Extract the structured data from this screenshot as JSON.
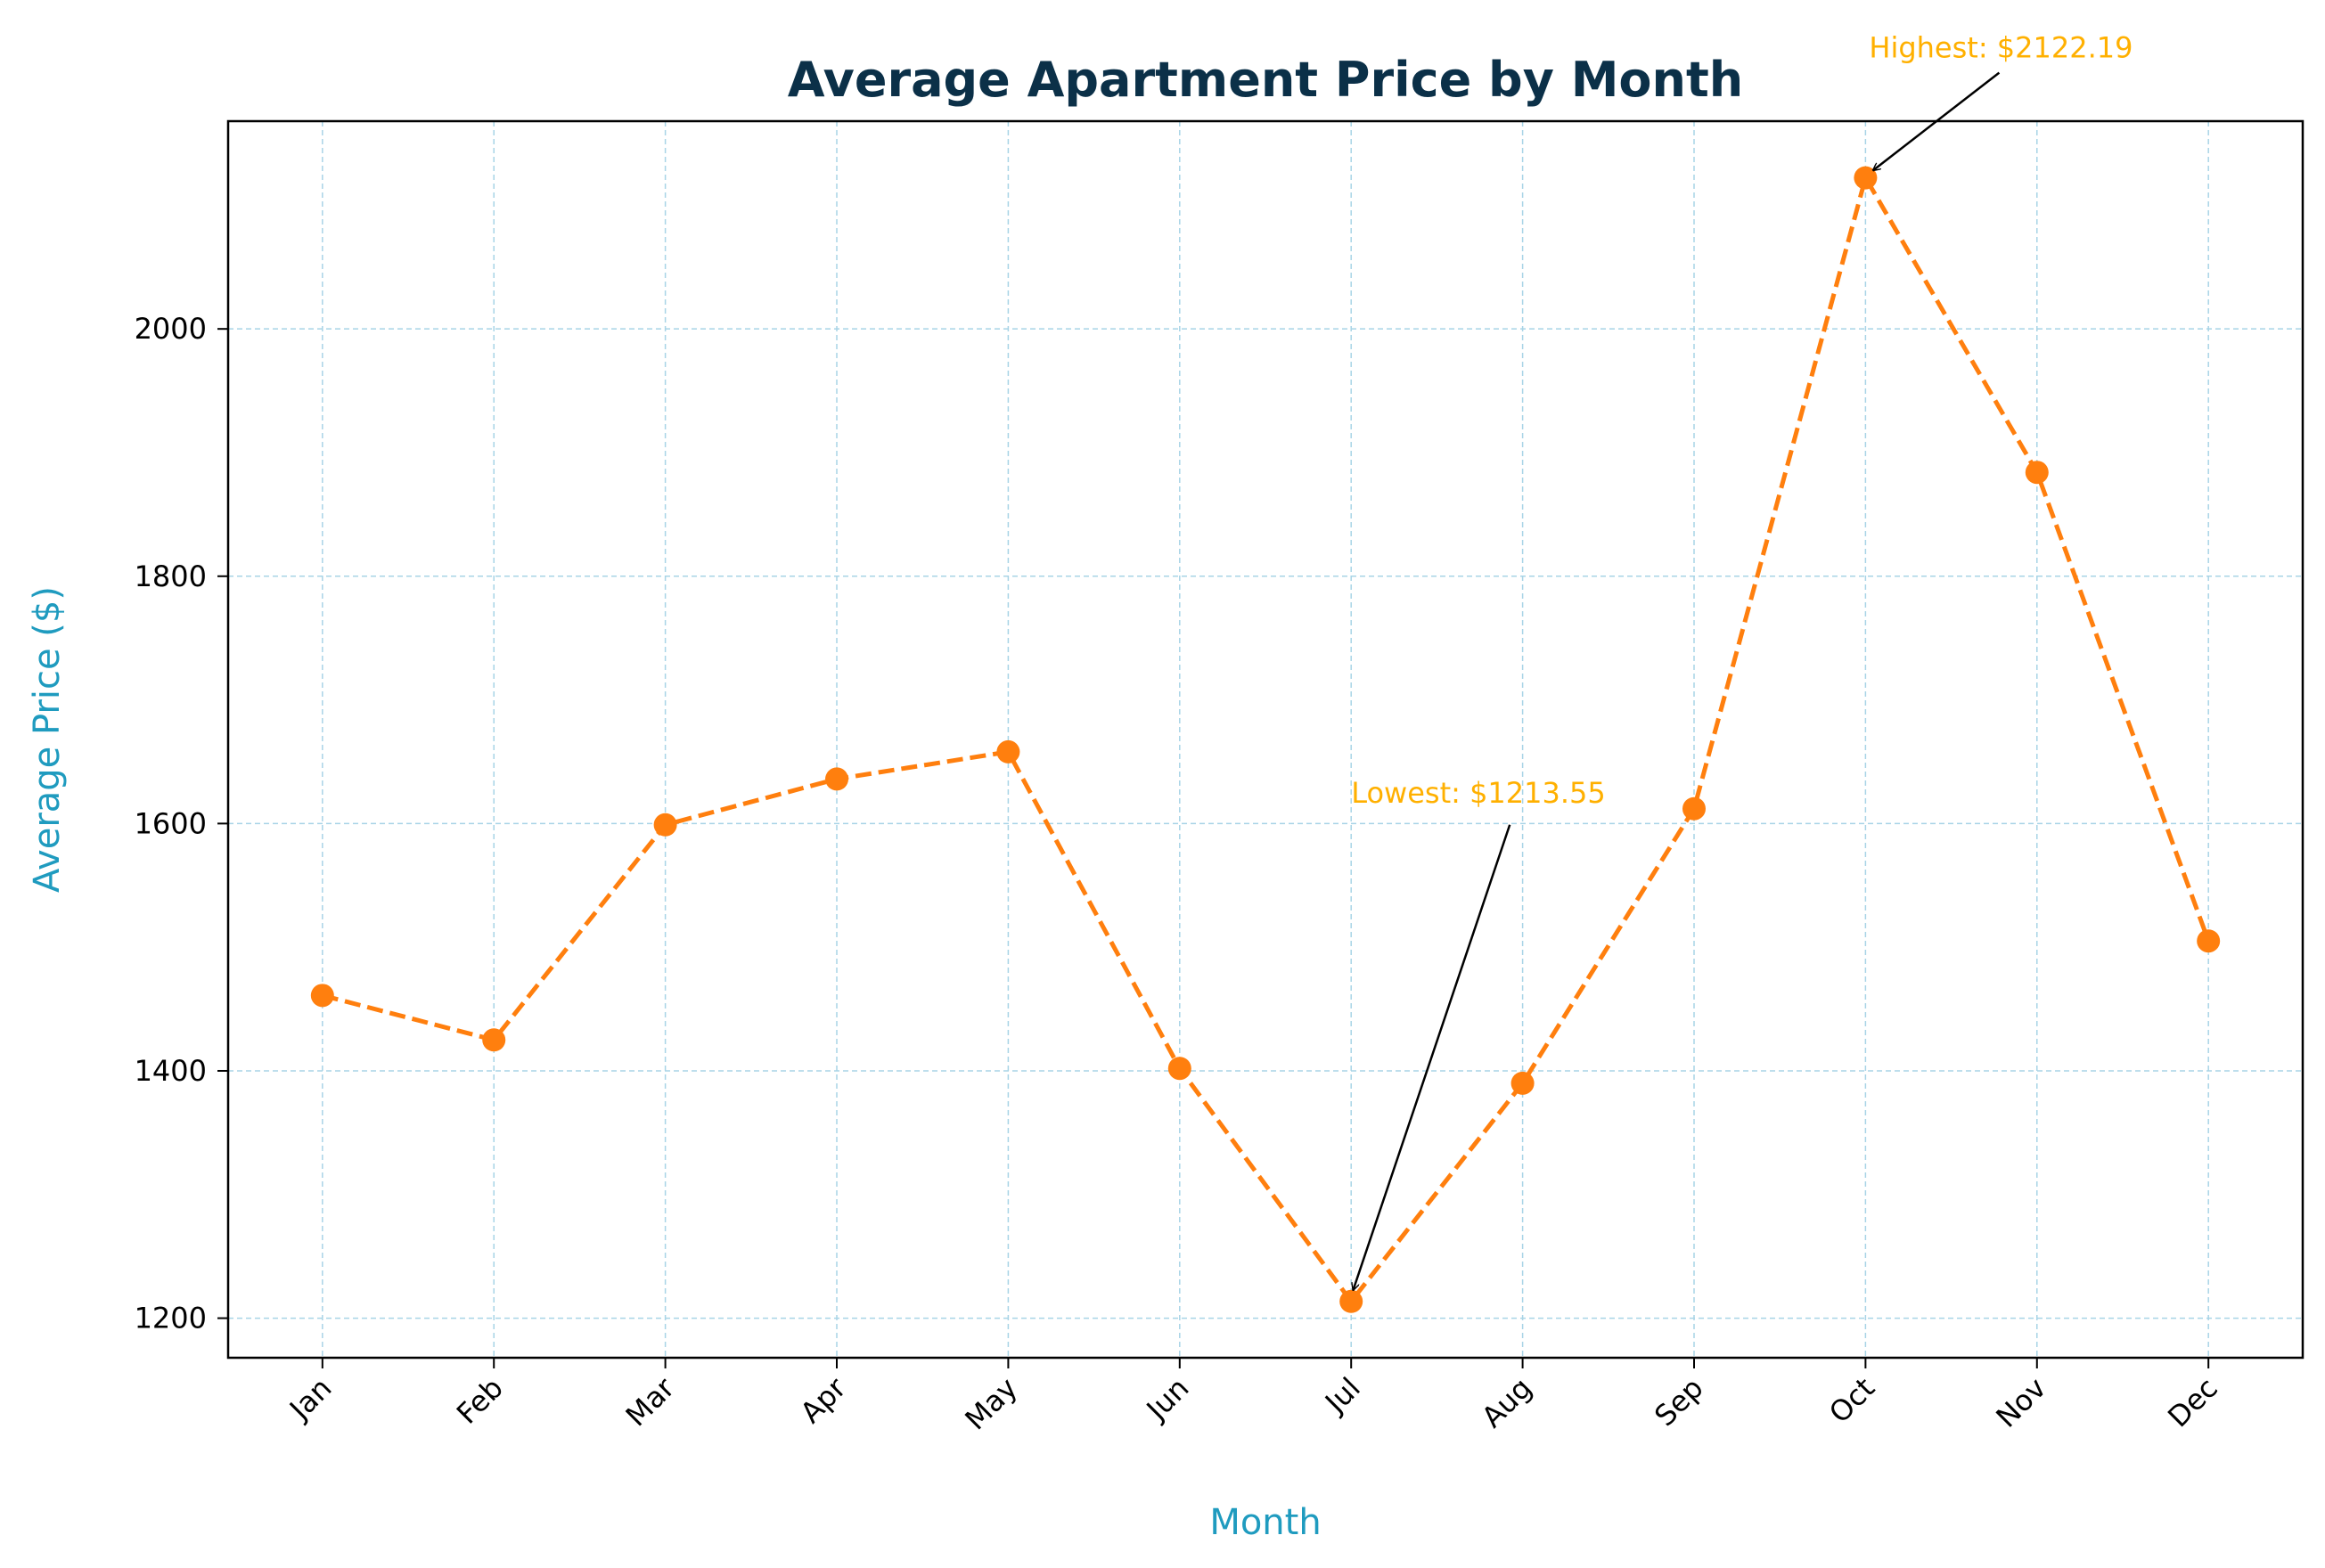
{
  "chart_data": {
    "type": "line",
    "title": "Average Apartment Price by Month",
    "xlabel": "Month",
    "ylabel": "Average Price ($)",
    "categories": [
      "Jan",
      "Feb",
      "Mar",
      "Apr",
      "May",
      "Jun",
      "Jul",
      "Aug",
      "Sep",
      "Oct",
      "Nov",
      "Dec"
    ],
    "series": [
      {
        "values": [
          1461,
          1425,
          1599,
          1636,
          1658,
          1402,
          1213.55,
          1390,
          1612,
          2122.19,
          1884,
          1505
        ],
        "color": "#ff7f0e",
        "line_style": "dashed",
        "marker": "circle"
      }
    ],
    "ylim": [
      1168,
      2168
    ],
    "yticks": [
      1200,
      1400,
      1600,
      1800,
      2000
    ],
    "grid": true,
    "grid_color": "#a8d4e6",
    "title_color": "#0b3048",
    "label_color": "#1f9bbf",
    "annotation_color": "#ffb000",
    "annotations": [
      {
        "text": "Highest: $2122.19",
        "category": "Oct",
        "value": 2122.19
      },
      {
        "text": "Lowest: $1213.55",
        "category": "Jul",
        "value": 1213.55
      }
    ]
  }
}
